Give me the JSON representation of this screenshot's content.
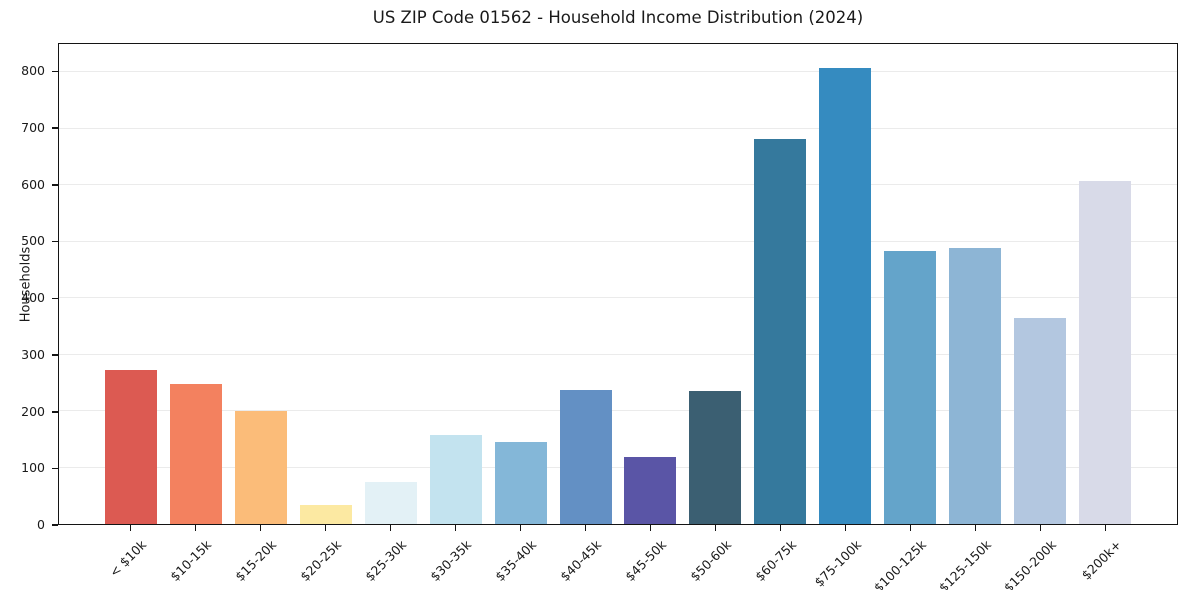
{
  "title": "US ZIP Code 01562 - Household Income Distribution (2024)",
  "chart_data": {
    "type": "bar",
    "title": "US ZIP Code 01562 - Household Income Distribution (2024)",
    "xlabel": "",
    "ylabel": "Households",
    "categories": [
      "< $10k",
      "$10-15k",
      "$15-20k",
      "$20-25k",
      "$25-30k",
      "$30-35k",
      "$35-40k",
      "$40-45k",
      "$45-50k",
      "$50-60k",
      "$60-75k",
      "$75-100k",
      "$100-125k",
      "$125-150k",
      "$150-200k",
      "$200k+"
    ],
    "values": [
      272,
      248,
      201,
      33,
      75,
      158,
      145,
      238,
      119,
      235,
      682,
      808,
      484,
      489,
      364,
      608
    ],
    "bar_colors": [
      "#dc5a52",
      "#f3815f",
      "#fbbc79",
      "#fce9a2",
      "#e3f1f6",
      "#c3e3ef",
      "#84b7d8",
      "#6390c4",
      "#5a55a6",
      "#3b5f72",
      "#35799d",
      "#358bc0",
      "#64a4ca",
      "#8db5d5",
      "#b3c7e0",
      "#d8dae8"
    ],
    "yticks": [
      0,
      100,
      200,
      300,
      400,
      500,
      600,
      700,
      800
    ],
    "ylim": [
      0,
      850
    ],
    "grid": "horizontal",
    "legend_position": "none"
  },
  "colors": {
    "background": "#ffffff",
    "plot_background": "#ffffff",
    "grid": "#ebebeb",
    "spine": "#141414",
    "text": "#1a1a1a"
  }
}
